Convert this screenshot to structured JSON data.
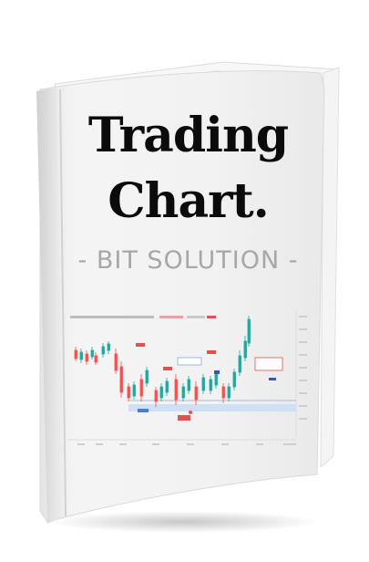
{
  "cover": {
    "title_line1": "Trading",
    "title_line2": "Chart.",
    "subtitle": "- BIT SOLUTION -"
  },
  "colors": {
    "cover": "#f1f1f1",
    "spine": "#e2e2e2",
    "title": "#0b0b0b",
    "subtitle": "#a7a7a7",
    "candle_up": "#26a69a",
    "candle_down": "#ef5350",
    "zone_blue": "#cfe0f5",
    "label_red": "#e0524f"
  }
}
